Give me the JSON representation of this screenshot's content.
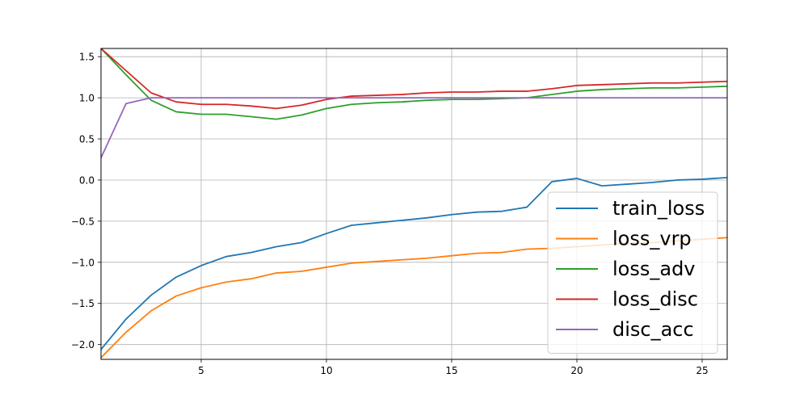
{
  "chart_data": {
    "type": "line",
    "title": "",
    "xlabel": "",
    "ylabel": "",
    "xlim": [
      1,
      26
    ],
    "ylim": [
      -2.18,
      1.6
    ],
    "xticks": [
      5,
      10,
      15,
      20,
      25
    ],
    "yticks": [
      -2.0,
      -1.5,
      -1.0,
      -0.5,
      0.0,
      0.5,
      1.0,
      1.5
    ],
    "grid": true,
    "legend_position": "lower right",
    "x": [
      1,
      2,
      3,
      4,
      5,
      6,
      7,
      8,
      9,
      10,
      11,
      12,
      13,
      14,
      15,
      16,
      17,
      18,
      19,
      20,
      21,
      22,
      23,
      24,
      25,
      26
    ],
    "series": [
      {
        "name": "train_loss",
        "color": "#1f77b4",
        "values": [
          -2.06,
          -1.69,
          -1.4,
          -1.18,
          -1.04,
          -0.93,
          -0.88,
          -0.81,
          -0.76,
          -0.65,
          -0.55,
          -0.52,
          -0.49,
          -0.46,
          -0.42,
          -0.39,
          -0.38,
          -0.33,
          -0.02,
          0.02,
          -0.07,
          -0.05,
          -0.03,
          0.0,
          0.01,
          0.03
        ]
      },
      {
        "name": "loss_vrp",
        "color": "#ff7f0e",
        "values": [
          -2.16,
          -1.85,
          -1.59,
          -1.41,
          -1.31,
          -1.24,
          -1.2,
          -1.13,
          -1.11,
          -1.06,
          -1.01,
          -0.99,
          -0.97,
          -0.95,
          -0.92,
          -0.89,
          -0.88,
          -0.84,
          -0.83,
          -0.81,
          -0.79,
          -0.77,
          -0.76,
          -0.74,
          -0.72,
          -0.7
        ]
      },
      {
        "name": "loss_adv",
        "color": "#2ca02c",
        "values": [
          1.6,
          1.28,
          0.97,
          0.83,
          0.8,
          0.8,
          0.77,
          0.74,
          0.79,
          0.87,
          0.92,
          0.94,
          0.95,
          0.97,
          0.98,
          0.98,
          0.99,
          1.0,
          1.04,
          1.08,
          1.1,
          1.11,
          1.12,
          1.12,
          1.13,
          1.14
        ]
      },
      {
        "name": "loss_disc",
        "color": "#d62728",
        "values": [
          1.6,
          1.33,
          1.06,
          0.95,
          0.92,
          0.92,
          0.9,
          0.87,
          0.91,
          0.98,
          1.02,
          1.03,
          1.04,
          1.06,
          1.07,
          1.07,
          1.08,
          1.08,
          1.11,
          1.15,
          1.16,
          1.17,
          1.18,
          1.18,
          1.19,
          1.2
        ]
      },
      {
        "name": "disc_acc",
        "color": "#9467bd",
        "values": [
          0.27,
          0.93,
          1.0,
          1.0,
          1.0,
          1.0,
          1.0,
          1.0,
          1.0,
          1.0,
          1.0,
          1.0,
          1.0,
          1.0,
          1.0,
          1.0,
          1.0,
          1.0,
          1.0,
          1.0,
          1.0,
          1.0,
          1.0,
          1.0,
          1.0,
          1.0
        ]
      }
    ]
  }
}
